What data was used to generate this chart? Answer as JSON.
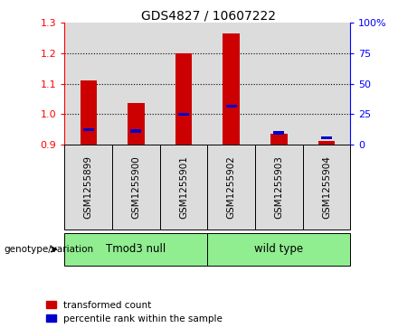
{
  "title": "GDS4827 / 10607222",
  "samples": [
    "GSM1255899",
    "GSM1255900",
    "GSM1255901",
    "GSM1255902",
    "GSM1255903",
    "GSM1255904"
  ],
  "red_top": [
    1.11,
    1.035,
    1.2,
    1.265,
    0.935,
    0.912
  ],
  "red_bottom": [
    0.9,
    0.9,
    0.9,
    0.9,
    0.9,
    0.9
  ],
  "blue_values": [
    0.948,
    0.944,
    0.998,
    1.025,
    0.938,
    0.922
  ],
  "ylim": [
    0.9,
    1.3
  ],
  "yticks_left": [
    0.9,
    1.0,
    1.1,
    1.2,
    1.3
  ],
  "yticks_right_vals": [
    0,
    25,
    50,
    75,
    100
  ],
  "yticks_right_labels": [
    "0",
    "25",
    "50",
    "75",
    "100%"
  ],
  "groups": [
    {
      "label": "Tmod3 null",
      "indices": [
        0,
        1,
        2
      ],
      "color": "#90EE90"
    },
    {
      "label": "wild type",
      "indices": [
        3,
        4,
        5
      ],
      "color": "#90EE90"
    }
  ],
  "genotype_label": "genotype/variation",
  "legend_red": "transformed count",
  "legend_blue": "percentile rank within the sample",
  "bar_color": "#CC0000",
  "blue_color": "#0000CC",
  "bar_width": 0.35,
  "col_bg": "#DCDCDC"
}
